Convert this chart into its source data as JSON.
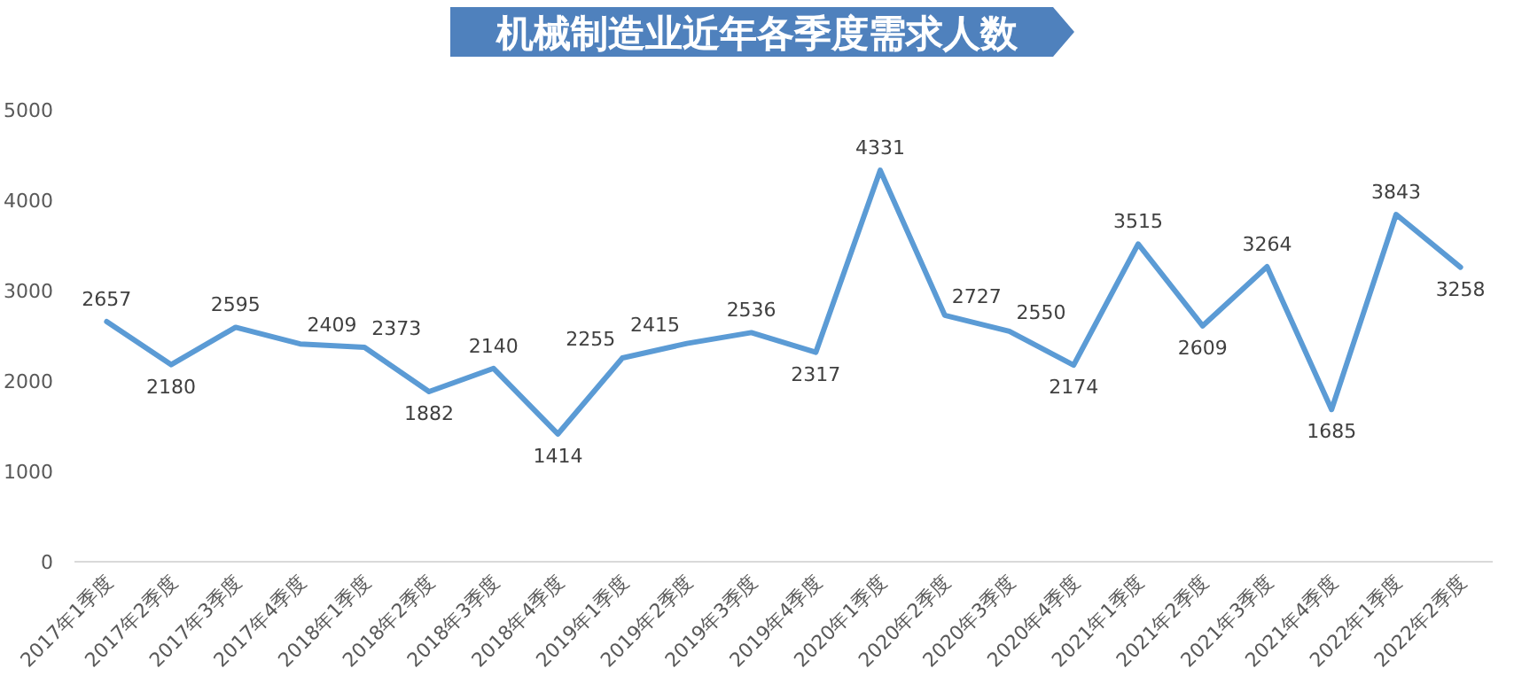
{
  "chart_data": {
    "type": "line",
    "title": "机械制造业近年各季度需求人数",
    "categories": [
      "2017年1季度",
      "2017年2季度",
      "2017年3季度",
      "2017年4季度",
      "2018年1季度",
      "2018年2季度",
      "2018年3季度",
      "2018年4季度",
      "2019年1季度",
      "2019年2季度",
      "2019年3季度",
      "2019年4季度",
      "2020年1季度",
      "2020年2季度",
      "2020年3季度",
      "2020年4季度",
      "2021年1季度",
      "2021年2季度",
      "2021年3季度",
      "2021年4季度",
      "2022年1季度",
      "2022年2季度"
    ],
    "series": [
      {
        "color": "#5b9bd5",
        "values": [
          2657,
          2180,
          2595,
          2409,
          2373,
          1882,
          2140,
          1414,
          2255,
          2415,
          2536,
          2317,
          4331,
          2727,
          2550,
          2174,
          3515,
          2609,
          3264,
          1685,
          3843,
          3258
        ]
      }
    ],
    "ylim": [
      0,
      5000
    ],
    "yticks": [
      0,
      1000,
      2000,
      3000,
      4000,
      5000
    ],
    "data_labels": true,
    "marker": "none",
    "line_style": "solid"
  }
}
